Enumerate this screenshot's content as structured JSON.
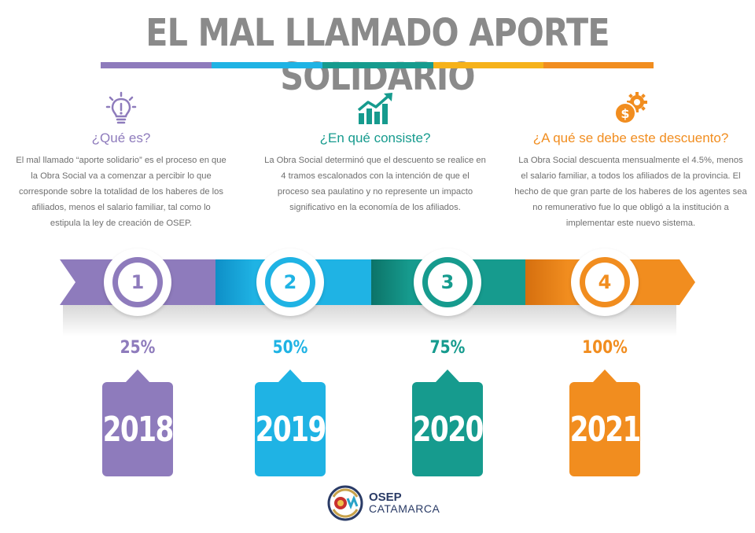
{
  "title": "EL MAL LLAMADO APORTE SOLIDARIO",
  "colors": {
    "purple": "#8e7bbc",
    "cyan": "#1fb3e4",
    "teal": "#169b8e",
    "yellow": "#f6b21a",
    "orange": "#f18d1f",
    "title_gray": "#8a8a8a"
  },
  "sections": [
    {
      "heading": "¿Qué es?",
      "icon": "lightbulb-icon",
      "text": "El mal llamado “aporte solidario” es el proceso en que la Obra Social va a comenzar a percibir lo que corresponde sobre la totalidad de los haberes de los afiliados, menos el salario familiar, tal como lo estipula la ley de creación de OSEP."
    },
    {
      "heading": "¿En qué consiste?",
      "icon": "growth-chart-icon",
      "text": "La Obra Social determinó que el descuento se realice en 4 tramos escalonados con la intención de que el proceso sea paulatino y no represente un impacto significativo en la economía de los afiliados."
    },
    {
      "heading": "¿A qué se debe este descuento?",
      "icon": "money-gear-icon",
      "text": "La Obra Social descuenta mensualmente el 4.5%, menos el salario familiar, a todos los afiliados de la provincia. El hecho de que gran parte de los haberes de los agentes sea no remunerativo fue lo que obligó a la institución a implementar este nuevo sistema."
    }
  ],
  "steps": [
    {
      "number": "1",
      "percent": "25%",
      "year": "2018"
    },
    {
      "number": "2",
      "percent": "50%",
      "year": "2019"
    },
    {
      "number": "3",
      "percent": "75%",
      "year": "2020"
    },
    {
      "number": "4",
      "percent": "100%",
      "year": "2021"
    }
  ],
  "logo": {
    "line1": "OSEP",
    "line2": "CATAMARCA"
  }
}
